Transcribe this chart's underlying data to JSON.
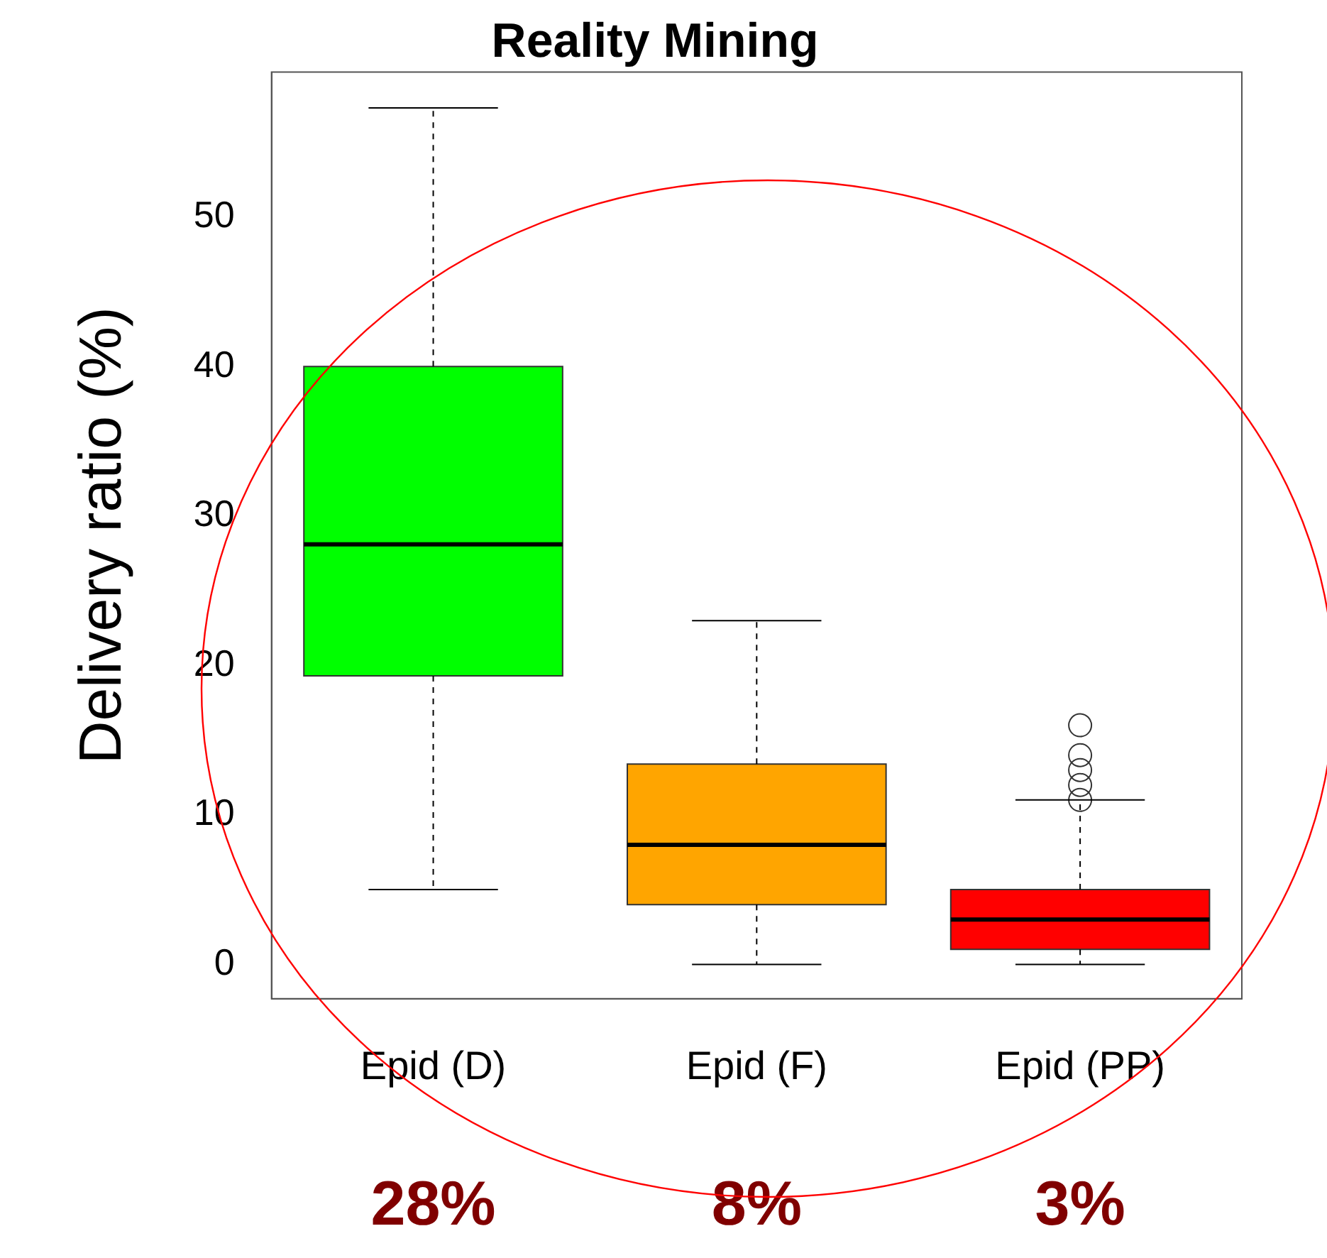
{
  "chart_data": {
    "type": "box",
    "title": "Reality Mining",
    "ylabel": "Delivery ratio (%)",
    "categories": [
      "Epid (D)",
      "Epid (F)",
      "Epid (PP)"
    ],
    "colors": [
      "#00ff00",
      "#ffa500",
      "#ff0000"
    ],
    "boxes": [
      {
        "low": 5,
        "q1": 19.3,
        "median": 28.1,
        "q3": 40,
        "high": 57.3
      },
      {
        "low": 0,
        "q1": 4,
        "median": 8,
        "q3": 13.4,
        "high": 23
      },
      {
        "low": 0,
        "q1": 1,
        "median": 3,
        "q3": 5,
        "high": 11,
        "outliers": [
          16,
          14,
          13,
          12,
          11
        ]
      }
    ],
    "ylim": [
      -2.3,
      59.7
    ],
    "yticks": [
      0,
      10,
      20,
      30,
      40,
      50
    ],
    "grid": false,
    "legend": false,
    "annotations": [
      "28%",
      "8%",
      "3%"
    ]
  }
}
